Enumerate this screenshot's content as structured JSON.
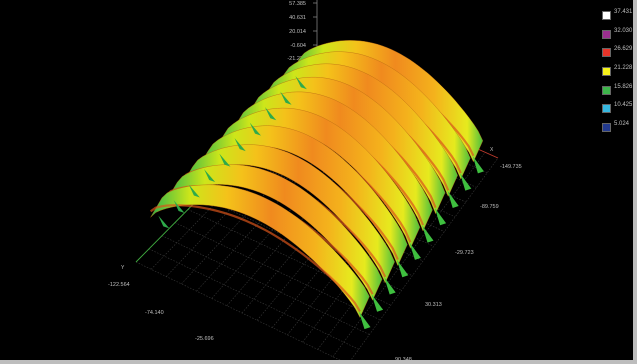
{
  "chart_data": {
    "type": "surface3d",
    "title": "",
    "legend": {
      "placement": "top-right",
      "entries": [
        {
          "label": "37.431",
          "color": "#ffffff"
        },
        {
          "label": "32.030",
          "color": "#9b2f8f"
        },
        {
          "label": "26.629",
          "color": "#e8352a"
        },
        {
          "label": "21.228",
          "color": "#f5f21a"
        },
        {
          "label": "15.826",
          "color": "#3db54a"
        },
        {
          "label": "10.425",
          "color": "#36b8e0"
        },
        {
          "label": "5.024",
          "color": "#233a8e"
        }
      ]
    },
    "z_axis": {
      "label": "",
      "ticks": [
        "57.385",
        "40.631",
        "20.014",
        "-0.604",
        "-21.221"
      ]
    },
    "x_axis": {
      "label": "Y",
      "ticks": [
        "-122.564",
        "-74.140",
        "-25.696",
        "90.348"
      ]
    },
    "y_axis": {
      "label": "X",
      "ticks": [
        "-149.735",
        "-89.759",
        "-29.723",
        "30.313",
        "90.348"
      ]
    },
    "surface": {
      "description": "ribbed dome surface with 10 parallel ridges",
      "ridges": 10,
      "z_range": [
        5.024,
        37.431
      ]
    },
    "grid": true
  }
}
